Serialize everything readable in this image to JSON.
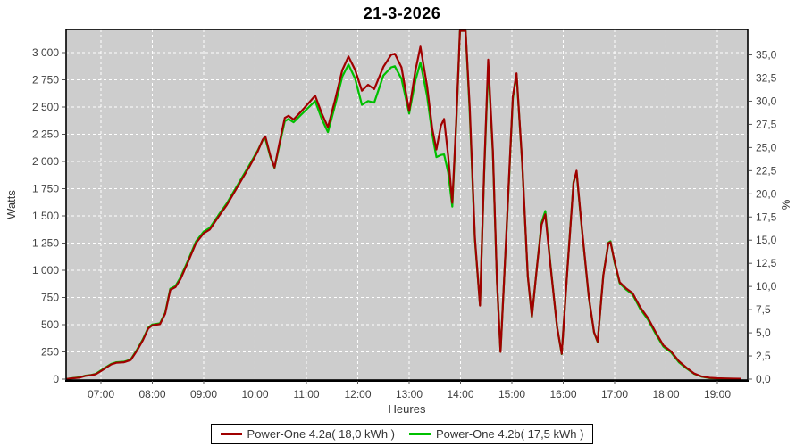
{
  "title": "21-3-2026",
  "colors": {
    "series_a": "#a00000",
    "series_b": "#00c000",
    "plot_background": "#cdcdcd",
    "gridline": "#ffffff",
    "plot_border": "#000000",
    "tick_text": "#3f3f3f",
    "axis_label_text": "#333333"
  },
  "legend": {
    "items": [
      {
        "label": "Power-One 4.2a( 18,0 kWh )",
        "color": "#a00000"
      },
      {
        "label": "Power-One 4.2b( 17,5 kWh )",
        "color": "#00c000"
      }
    ]
  },
  "axes": {
    "left": {
      "label": "Watts",
      "tick_labels": [
        "0",
        "250",
        "500",
        "750",
        "1 000",
        "1 250",
        "1 500",
        "1 750",
        "2 000",
        "2 250",
        "2 500",
        "2 750",
        "3 000"
      ],
      "tick_values": [
        0,
        250,
        500,
        750,
        1000,
        1250,
        1500,
        1750,
        2000,
        2250,
        2500,
        2750,
        3000
      ]
    },
    "right": {
      "label": "%",
      "tick_labels": [
        "0,0",
        "2,5",
        "5,0",
        "7,5",
        "10,0",
        "12,5",
        "15,0",
        "17,5",
        "20,0",
        "22,5",
        "25,0",
        "27,5",
        "30,0",
        "32,5",
        "35,0"
      ],
      "tick_values": [
        0,
        2.5,
        5,
        7.5,
        10,
        12.5,
        15,
        17.5,
        20,
        22.5,
        25,
        27.5,
        30,
        32.5,
        35
      ]
    },
    "bottom": {
      "label": "Heures",
      "tick_labels": [
        "07:00",
        "08:00",
        "09:00",
        "10:00",
        "11:00",
        "12:00",
        "13:00",
        "14:00",
        "15:00",
        "16:00",
        "17:00",
        "18:00",
        "19:00"
      ],
      "tick_values": [
        7,
        8,
        9,
        10,
        11,
        12,
        13,
        14,
        15,
        16,
        17,
        18,
        19
      ]
    }
  },
  "chart_data": {
    "type": "line",
    "title": "21-3-2026",
    "xlabel": "Heures",
    "ylabel": "Watts",
    "y2label": "%",
    "xlim": [
      6.32,
      19.59
    ],
    "ylim": [
      0,
      3213
    ],
    "y2lim": [
      0,
      37.7
    ],
    "grid": true,
    "legend_position": "bottom",
    "series": [
      {
        "name": "Power-One 4.2a( 18,0 kWh )",
        "color": "#a00000",
        "axis": "watts",
        "points": [
          [
            6.33,
            2
          ],
          [
            6.45,
            8
          ],
          [
            6.58,
            14
          ],
          [
            6.7,
            30
          ],
          [
            6.8,
            36
          ],
          [
            6.9,
            45
          ],
          [
            7.0,
            75
          ],
          [
            7.1,
            105
          ],
          [
            7.2,
            135
          ],
          [
            7.3,
            150
          ],
          [
            7.45,
            155
          ],
          [
            7.58,
            175
          ],
          [
            7.7,
            260
          ],
          [
            7.82,
            360
          ],
          [
            7.92,
            465
          ],
          [
            8.0,
            495
          ],
          [
            8.15,
            505
          ],
          [
            8.25,
            600
          ],
          [
            8.35,
            820
          ],
          [
            8.45,
            845
          ],
          [
            8.55,
            920
          ],
          [
            8.7,
            1080
          ],
          [
            8.85,
            1250
          ],
          [
            9.0,
            1340
          ],
          [
            9.12,
            1375
          ],
          [
            9.3,
            1500
          ],
          [
            9.45,
            1600
          ],
          [
            9.6,
            1720
          ],
          [
            9.75,
            1840
          ],
          [
            9.9,
            1960
          ],
          [
            10.05,
            2090
          ],
          [
            10.15,
            2200
          ],
          [
            10.2,
            2230
          ],
          [
            10.3,
            2050
          ],
          [
            10.38,
            1945
          ],
          [
            10.48,
            2180
          ],
          [
            10.58,
            2400
          ],
          [
            10.65,
            2420
          ],
          [
            10.75,
            2385
          ],
          [
            10.9,
            2460
          ],
          [
            11.05,
            2540
          ],
          [
            11.17,
            2605
          ],
          [
            11.3,
            2440
          ],
          [
            11.42,
            2315
          ],
          [
            11.55,
            2550
          ],
          [
            11.7,
            2840
          ],
          [
            11.82,
            2965
          ],
          [
            11.95,
            2840
          ],
          [
            12.08,
            2650
          ],
          [
            12.2,
            2705
          ],
          [
            12.32,
            2665
          ],
          [
            12.5,
            2870
          ],
          [
            12.65,
            2980
          ],
          [
            12.72,
            2990
          ],
          [
            12.85,
            2865
          ],
          [
            13.0,
            2465
          ],
          [
            13.12,
            2830
          ],
          [
            13.22,
            3055
          ],
          [
            13.35,
            2690
          ],
          [
            13.45,
            2300
          ],
          [
            13.53,
            2110
          ],
          [
            13.62,
            2330
          ],
          [
            13.68,
            2390
          ],
          [
            13.76,
            2050
          ],
          [
            13.84,
            1620
          ],
          [
            13.92,
            2400
          ],
          [
            13.99,
            3300
          ],
          [
            14.1,
            3300
          ],
          [
            14.18,
            2500
          ],
          [
            14.28,
            1300
          ],
          [
            14.38,
            675
          ],
          [
            14.46,
            1900
          ],
          [
            14.54,
            2935
          ],
          [
            14.63,
            2100
          ],
          [
            14.71,
            900
          ],
          [
            14.78,
            250
          ],
          [
            14.9,
            1400
          ],
          [
            15.02,
            2600
          ],
          [
            15.09,
            2810
          ],
          [
            15.2,
            2000
          ],
          [
            15.31,
            950
          ],
          [
            15.39,
            575
          ],
          [
            15.5,
            1080
          ],
          [
            15.58,
            1420
          ],
          [
            15.65,
            1515
          ],
          [
            15.75,
            1050
          ],
          [
            15.88,
            480
          ],
          [
            15.97,
            232
          ],
          [
            16.08,
            1000
          ],
          [
            16.2,
            1800
          ],
          [
            16.26,
            1915
          ],
          [
            16.35,
            1450
          ],
          [
            16.5,
            750
          ],
          [
            16.6,
            430
          ],
          [
            16.67,
            345
          ],
          [
            16.78,
            950
          ],
          [
            16.88,
            1250
          ],
          [
            16.92,
            1258
          ],
          [
            17.0,
            1080
          ],
          [
            17.1,
            890
          ],
          [
            17.22,
            835
          ],
          [
            17.35,
            790
          ],
          [
            17.5,
            660
          ],
          [
            17.65,
            560
          ],
          [
            17.8,
            430
          ],
          [
            17.95,
            310
          ],
          [
            18.1,
            255
          ],
          [
            18.25,
            165
          ],
          [
            18.4,
            105
          ],
          [
            18.55,
            52
          ],
          [
            18.7,
            24
          ],
          [
            18.85,
            12
          ],
          [
            19.0,
            8
          ],
          [
            19.2,
            6
          ],
          [
            19.45,
            3
          ]
        ]
      },
      {
        "name": "Power-One 4.2b( 17,5 kWh )",
        "color": "#00c000",
        "axis": "watts",
        "points": [
          [
            6.33,
            2
          ],
          [
            6.45,
            9
          ],
          [
            6.58,
            16
          ],
          [
            6.7,
            32
          ],
          [
            6.8,
            38
          ],
          [
            6.9,
            48
          ],
          [
            7.0,
            80
          ],
          [
            7.1,
            110
          ],
          [
            7.2,
            140
          ],
          [
            7.3,
            155
          ],
          [
            7.45,
            160
          ],
          [
            7.58,
            180
          ],
          [
            7.7,
            268
          ],
          [
            7.82,
            368
          ],
          [
            7.92,
            472
          ],
          [
            8.0,
            502
          ],
          [
            8.15,
            512
          ],
          [
            8.25,
            610
          ],
          [
            8.35,
            830
          ],
          [
            8.45,
            855
          ],
          [
            8.55,
            935
          ],
          [
            8.7,
            1095
          ],
          [
            8.85,
            1265
          ],
          [
            9.0,
            1355
          ],
          [
            9.12,
            1390
          ],
          [
            9.3,
            1515
          ],
          [
            9.45,
            1615
          ],
          [
            9.6,
            1735
          ],
          [
            9.75,
            1855
          ],
          [
            9.9,
            1975
          ],
          [
            10.05,
            2100
          ],
          [
            10.15,
            2195
          ],
          [
            10.2,
            2210
          ],
          [
            10.3,
            2040
          ],
          [
            10.38,
            1940
          ],
          [
            10.48,
            2160
          ],
          [
            10.58,
            2370
          ],
          [
            10.65,
            2390
          ],
          [
            10.75,
            2360
          ],
          [
            10.9,
            2430
          ],
          [
            11.05,
            2500
          ],
          [
            11.17,
            2555
          ],
          [
            11.3,
            2390
          ],
          [
            11.42,
            2270
          ],
          [
            11.55,
            2500
          ],
          [
            11.7,
            2780
          ],
          [
            11.82,
            2890
          ],
          [
            11.95,
            2760
          ],
          [
            12.08,
            2520
          ],
          [
            12.2,
            2555
          ],
          [
            12.32,
            2540
          ],
          [
            12.5,
            2790
          ],
          [
            12.65,
            2865
          ],
          [
            12.72,
            2875
          ],
          [
            12.85,
            2760
          ],
          [
            13.0,
            2440
          ],
          [
            13.12,
            2740
          ],
          [
            13.22,
            2910
          ],
          [
            13.35,
            2600
          ],
          [
            13.45,
            2250
          ],
          [
            13.53,
            2040
          ],
          [
            13.62,
            2060
          ],
          [
            13.68,
            2065
          ],
          [
            13.76,
            1900
          ],
          [
            13.84,
            1585
          ],
          [
            13.92,
            2380
          ],
          [
            13.99,
            3300
          ],
          [
            14.1,
            3300
          ],
          [
            14.18,
            2450
          ],
          [
            14.28,
            1280
          ],
          [
            14.38,
            680
          ],
          [
            14.46,
            1880
          ],
          [
            14.54,
            2870
          ],
          [
            14.63,
            2080
          ],
          [
            14.71,
            895
          ],
          [
            14.78,
            252
          ],
          [
            14.9,
            1390
          ],
          [
            15.02,
            2580
          ],
          [
            15.09,
            2800
          ],
          [
            15.2,
            1990
          ],
          [
            15.31,
            945
          ],
          [
            15.39,
            572
          ],
          [
            15.5,
            1085
          ],
          [
            15.58,
            1440
          ],
          [
            15.65,
            1545
          ],
          [
            15.75,
            1060
          ],
          [
            15.88,
            478
          ],
          [
            15.97,
            230
          ],
          [
            16.08,
            1005
          ],
          [
            16.2,
            1810
          ],
          [
            16.26,
            1900
          ],
          [
            16.35,
            1440
          ],
          [
            16.5,
            745
          ],
          [
            16.6,
            428
          ],
          [
            16.67,
            340
          ],
          [
            16.78,
            955
          ],
          [
            16.88,
            1255
          ],
          [
            16.92,
            1266
          ],
          [
            17.0,
            1070
          ],
          [
            17.1,
            880
          ],
          [
            17.22,
            825
          ],
          [
            17.35,
            778
          ],
          [
            17.5,
            645
          ],
          [
            17.65,
            545
          ],
          [
            17.8,
            415
          ],
          [
            17.95,
            298
          ],
          [
            18.1,
            245
          ],
          [
            18.25,
            155
          ],
          [
            18.4,
            98
          ],
          [
            18.55,
            48
          ],
          [
            18.7,
            22
          ],
          [
            18.85,
            10
          ],
          [
            19.0,
            6
          ],
          [
            19.2,
            4
          ],
          [
            19.45,
            2
          ]
        ]
      }
    ]
  }
}
